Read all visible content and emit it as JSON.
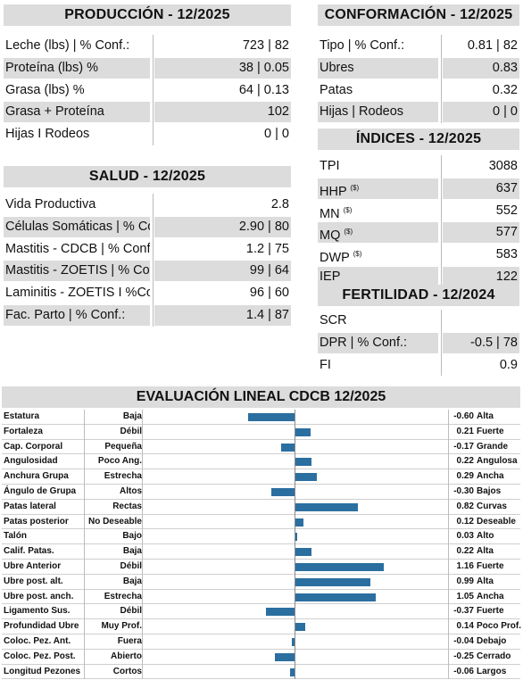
{
  "produccion": {
    "title": "PRODUCCIÓN - 12/2025",
    "rows": [
      {
        "label": "Leche (lbs) | % Conf.:",
        "value": "723 | 82"
      },
      {
        "label": "Proteína (lbs) %",
        "value": "38 | 0.05"
      },
      {
        "label": "Grasa (lbs) %",
        "value": "64 | 0.13"
      },
      {
        "label": "Grasa + Proteína",
        "value": "102"
      },
      {
        "label": "Hijas I Rodeos",
        "value": "0 | 0"
      }
    ]
  },
  "salud": {
    "title": "SALUD - 12/2025",
    "rows": [
      {
        "label": "Vida Productiva",
        "value": "2.8"
      },
      {
        "label": "Células Somáticas | % Conf.:",
        "value": "2.90 | 80"
      },
      {
        "label": "Mastitis - CDCB | % Conf.:",
        "value": "1.2 | 75"
      },
      {
        "label": "Mastitis - ZOETIS | % Conf.:",
        "value": "99 | 64"
      },
      {
        "label": "Laminitis - ZOETIS I %Conf.:",
        "value": "96 | 60"
      },
      {
        "label": "Fac. Parto | % Conf.:",
        "value": "1.4 | 87"
      }
    ]
  },
  "conformacion": {
    "title": "CONFORMACIÓN - 12/2025",
    "rows": [
      {
        "label": "Tipo | % Conf.:",
        "value": "0.81 | 82"
      },
      {
        "label": "Ubres",
        "value": "0.83"
      },
      {
        "label": "Patas",
        "value": "0.32"
      },
      {
        "label": "Hijas | Rodeos",
        "value": "0 | 0"
      }
    ]
  },
  "indices": {
    "title": "ÍNDICES - 12/2025",
    "sup": "($)",
    "rows": [
      {
        "label": "TPI",
        "value": "3088"
      },
      {
        "label": "HHP",
        "value": "637"
      },
      {
        "label": "MN",
        "value": "552"
      },
      {
        "label": "MQ",
        "value": "577"
      },
      {
        "label": "DWP",
        "value": "583"
      },
      {
        "label": "IEP",
        "value": "122"
      }
    ]
  },
  "fertilidad": {
    "title": "FERTILIDAD - 12/2024",
    "rows": [
      {
        "label": "SCR",
        "value": ""
      },
      {
        "label": "DPR | % Conf.:",
        "value": "-0.5 | 78"
      },
      {
        "label": "FI",
        "value": "0.9"
      }
    ]
  },
  "lineal": {
    "title": "EVALUACIÓN LINEAL CDCB 12/2025",
    "bar_color": "#2b6ea0",
    "scale_max": 1.16,
    "traits": [
      {
        "name": "Estatura",
        "low": "Baja",
        "value": -0.6,
        "value_text": "-0.60",
        "high": "Alta"
      },
      {
        "name": "Fortaleza",
        "low": "Débil",
        "value": 0.21,
        "value_text": "0.21",
        "high": "Fuerte"
      },
      {
        "name": "Cap. Corporal",
        "low": "Pequeña",
        "value": -0.17,
        "value_text": "-0.17",
        "high": "Grande"
      },
      {
        "name": "Angulosidad",
        "low": "Poco Ang.",
        "value": 0.22,
        "value_text": "0.22",
        "high": "Angulosa"
      },
      {
        "name": "Anchura Grupa",
        "low": "Estrecha",
        "value": 0.29,
        "value_text": "0.29",
        "high": "Ancha"
      },
      {
        "name": "Ángulo de Grupa",
        "low": "Altos",
        "value": -0.3,
        "value_text": "-0.30",
        "high": "Bajos"
      },
      {
        "name": "Patas lateral",
        "low": "Rectas",
        "value": 0.82,
        "value_text": "0.82",
        "high": "Curvas"
      },
      {
        "name": "Patas posterior",
        "low": "No Deseable",
        "value": 0.12,
        "value_text": "0.12",
        "high": "Deseable"
      },
      {
        "name": "Talón",
        "low": "Bajo",
        "value": 0.03,
        "value_text": "0.03",
        "high": "Alto"
      },
      {
        "name": "Calif. Patas.",
        "low": "Baja",
        "value": 0.22,
        "value_text": "0.22",
        "high": "Alta"
      },
      {
        "name": "Ubre Anterior",
        "low": "Débil",
        "value": 1.16,
        "value_text": "1.16",
        "high": "Fuerte"
      },
      {
        "name": "Ubre post. alt.",
        "low": "Baja",
        "value": 0.99,
        "value_text": "0.99",
        "high": "Alta"
      },
      {
        "name": "Ubre post. anch.",
        "low": "Estrecha",
        "value": 1.05,
        "value_text": "1.05",
        "high": "Ancha"
      },
      {
        "name": "Ligamento Sus.",
        "low": "Débil",
        "value": -0.37,
        "value_text": "-0.37",
        "high": "Fuerte"
      },
      {
        "name": "Profundidad Ubre",
        "low": "Muy Prof.",
        "value": 0.14,
        "value_text": "0.14",
        "high": "Poco Prof."
      },
      {
        "name": "Coloc. Pez. Ant.",
        "low": "Fuera",
        "value": -0.04,
        "value_text": "-0.04",
        "high": "Debajo"
      },
      {
        "name": "Coloc. Pez. Post.",
        "low": "Abierto",
        "value": -0.25,
        "value_text": "-0.25",
        "high": "Cerrado"
      },
      {
        "name": "Longitud Pezones",
        "low": "Cortos",
        "value": -0.06,
        "value_text": "-0.06",
        "high": "Largos"
      }
    ]
  }
}
